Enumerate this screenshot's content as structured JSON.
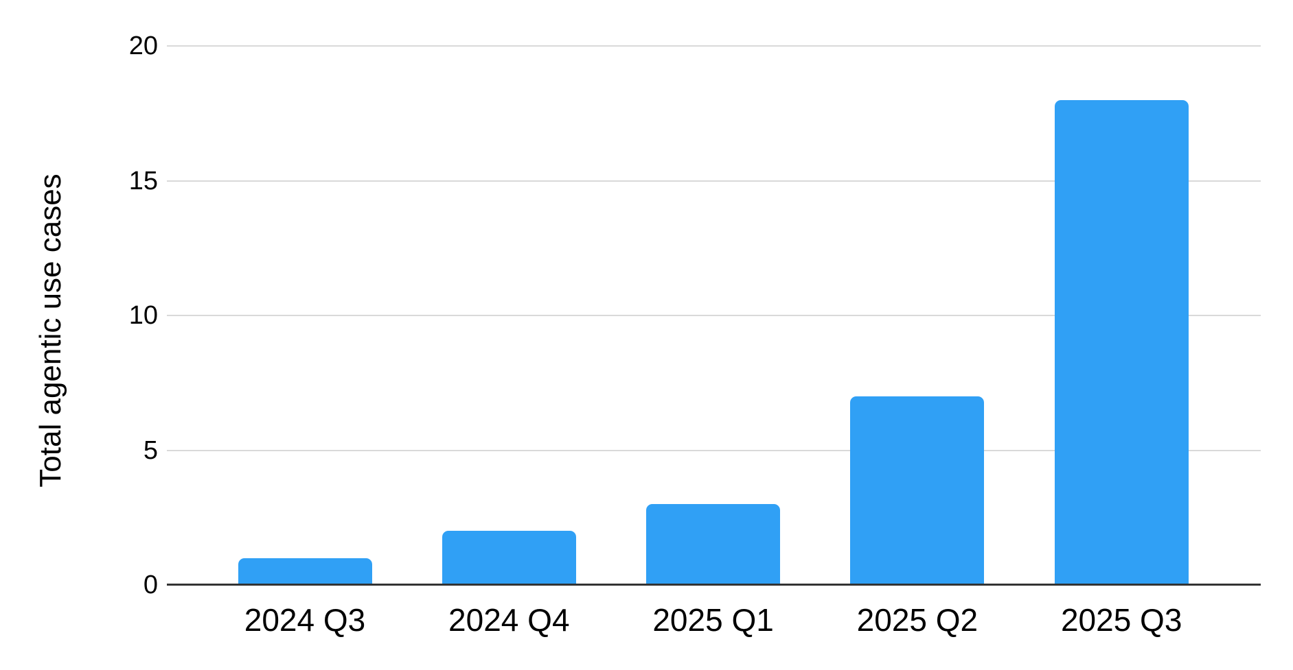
{
  "chart_data": {
    "type": "bar",
    "categories": [
      "2024 Q3",
      "2024 Q4",
      "2025 Q1",
      "2025 Q2",
      "2025 Q3"
    ],
    "values": [
      1,
      2,
      3,
      7,
      18
    ],
    "title": "",
    "xlabel": "",
    "ylabel": "Total agentic use cases",
    "ylim": [
      0,
      20
    ],
    "yticks": [
      0,
      5,
      10,
      15,
      20
    ],
    "grid": true,
    "legend_position": "none",
    "bar_color": "#30A0F5",
    "gridline_color": "#D9D9D9",
    "axis_color": "#333333",
    "text_color": "#000000"
  }
}
